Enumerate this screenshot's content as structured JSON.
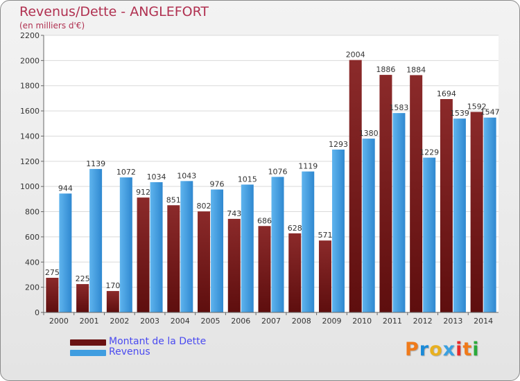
{
  "chart_data": {
    "type": "bar",
    "title": "Revenus/Dette - ANGLEFORT",
    "subtitle": "(en milliers d'€)",
    "categories": [
      "2000",
      "2001",
      "2002",
      "2003",
      "2004",
      "2005",
      "2006",
      "2007",
      "2008",
      "2009",
      "2010",
      "2011",
      "2012",
      "2013",
      "2014"
    ],
    "series": [
      {
        "name": "Montant de la Dette",
        "color": "#7a1c1c",
        "values": [
          275,
          225,
          170,
          912,
          851,
          802,
          743,
          686,
          628,
          571,
          2004,
          1886,
          1884,
          1694,
          1592
        ]
      },
      {
        "name": "Revenus",
        "color": "#3f9de0",
        "values": [
          944,
          1139,
          1072,
          1034,
          1043,
          976,
          1015,
          1076,
          1119,
          1293,
          1380,
          1583,
          1229,
          1539,
          1547
        ]
      }
    ],
    "y_ticks": [
      "0",
      "200",
      "400",
      "600",
      "800",
      "1000",
      "1200",
      "1400",
      "1600",
      "1800",
      "2000",
      "2200"
    ],
    "ylim": [
      0,
      2200
    ],
    "grid": true,
    "legend_position": "bottom-left"
  },
  "logo": {
    "text": "Proxiti",
    "colors": [
      "#f07a1a",
      "#1a8ad8",
      "#e8b020",
      "#3aa0e0",
      "#e82a2a",
      "#f07a1a",
      "#2aaa3a"
    ]
  }
}
